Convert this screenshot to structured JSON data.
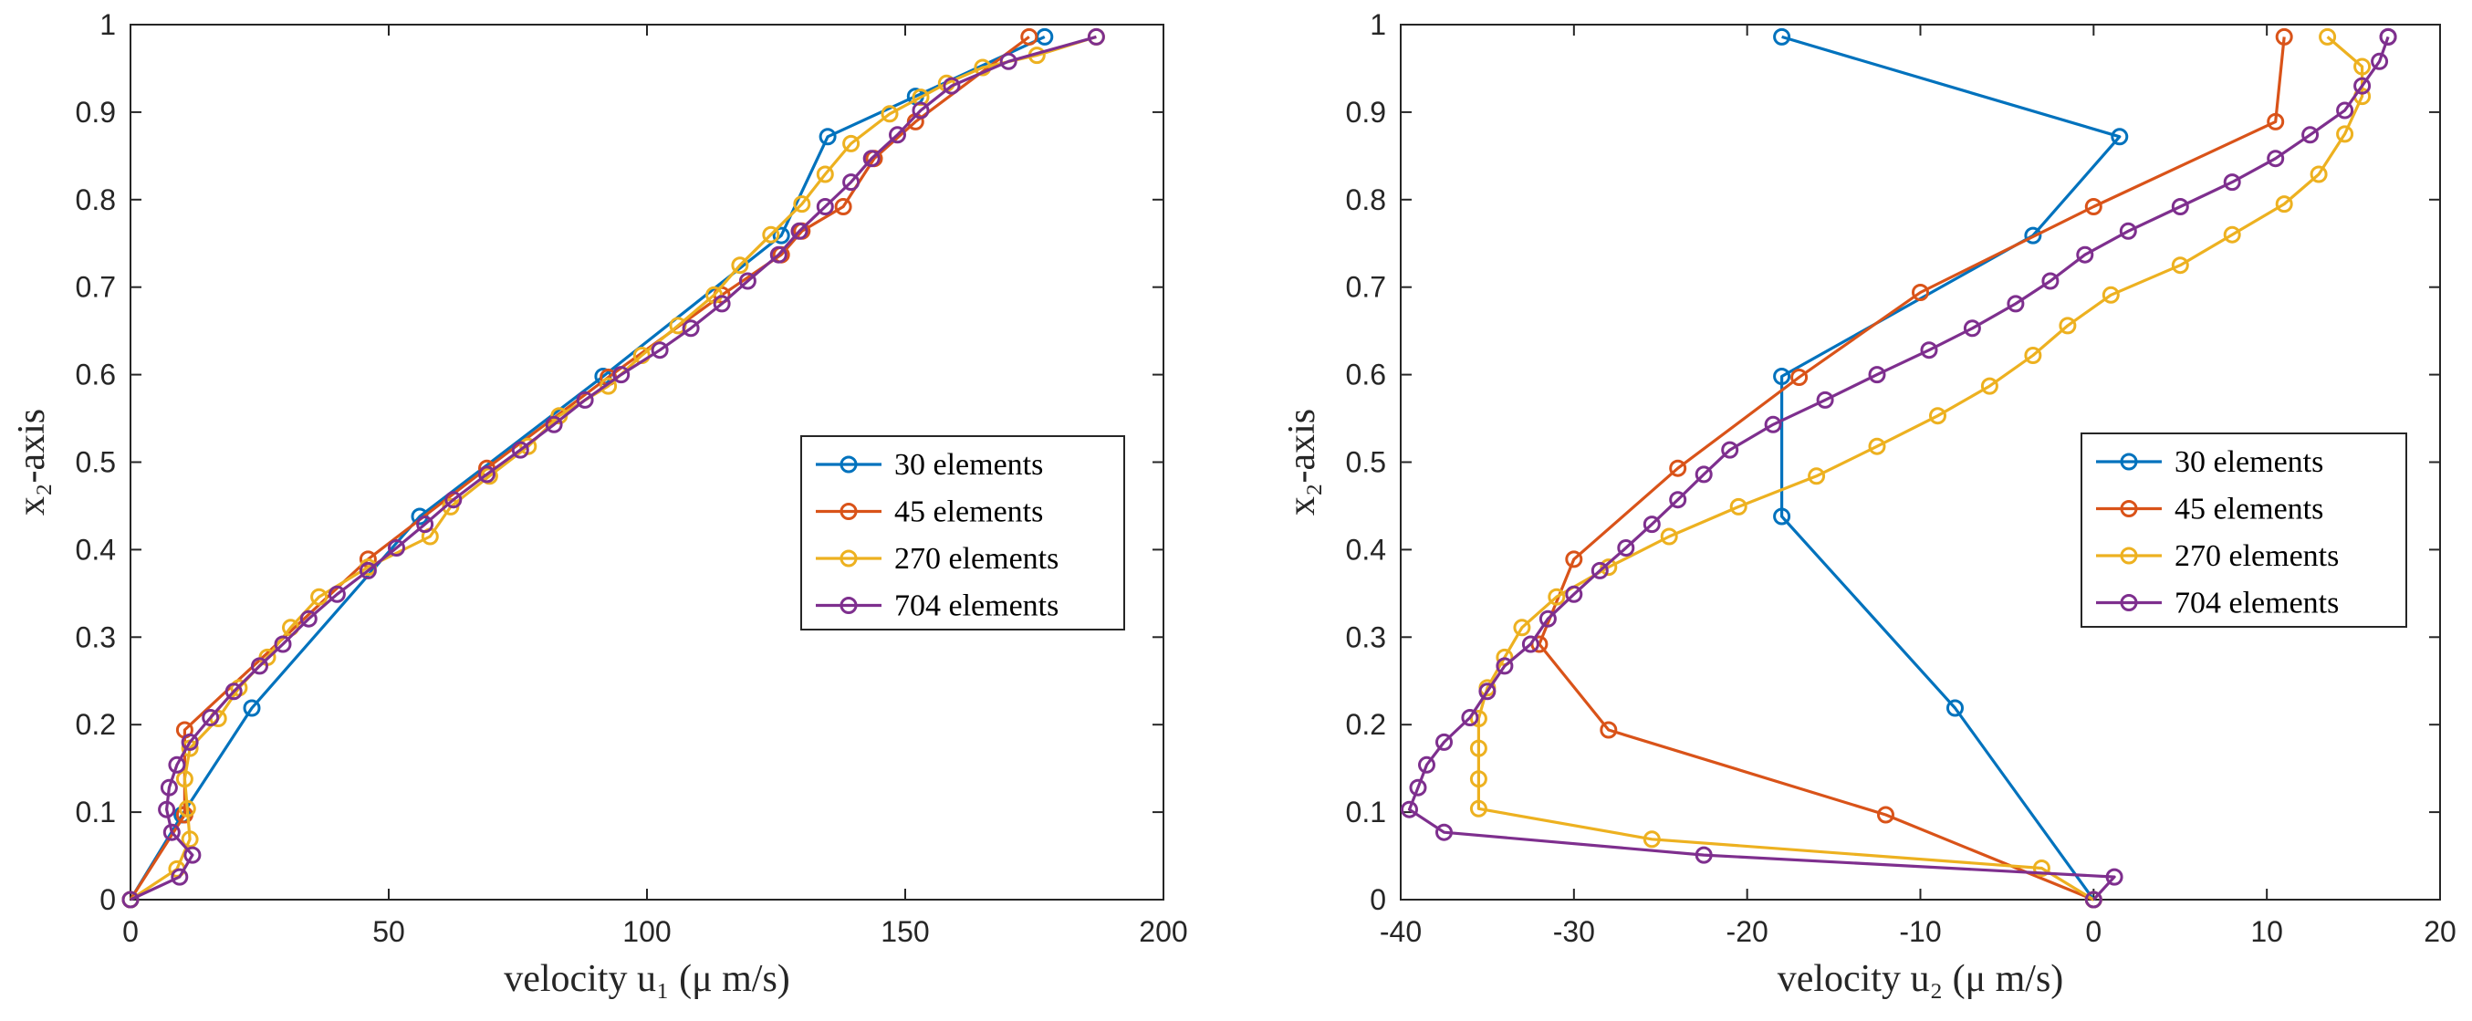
{
  "colors": {
    "30 elements": "#0072BD",
    "45 elements": "#D95319",
    "270 elements": "#EDB120",
    "704 elements": "#7E2F8E",
    "axis": "#262626"
  },
  "chart_data": [
    {
      "type": "line",
      "xlabel": "velocity u₁ (μ m/s)",
      "ylabel": "x₂-axis",
      "xlim": [
        0,
        200
      ],
      "ylim": [
        0,
        1
      ],
      "xticks": [
        "0",
        "50",
        "100",
        "150",
        "200"
      ],
      "yticks": [
        "0",
        "0.1",
        "0.2",
        "0.3",
        "0.4",
        "0.5",
        "0.6",
        "0.7",
        "0.8",
        "0.9",
        "1"
      ],
      "legend": "right-middle",
      "series": [
        {
          "name": "30 elements",
          "x": [
            0,
            10,
            23.5,
            56,
            91.5,
            126,
            135,
            152,
            177
          ],
          "y": [
            0,
            0.097,
            0.219,
            0.438,
            0.598,
            0.759,
            0.872,
            0.918,
            0.986
          ]
        },
        {
          "name": "45 elements",
          "x": [
            0,
            10.5,
            10.5,
            46,
            69,
            92.5,
            114.5,
            126,
            130,
            138,
            144,
            152,
            174
          ],
          "y": [
            0,
            0.097,
            0.194,
            0.389,
            0.493,
            0.597,
            0.691,
            0.737,
            0.764,
            0.792,
            0.847,
            0.889,
            0.986
          ]
        },
        {
          "name": "270 elements",
          "x": [
            0,
            9,
            11.5,
            11,
            10.5,
            11.5,
            17,
            21,
            26.5,
            31,
            36.5,
            46,
            58,
            62,
            69.5,
            77,
            83,
            92.5,
            99,
            106,
            113,
            118,
            124,
            130,
            134.5,
            139.5,
            147,
            153,
            158,
            165,
            175.5,
            187
          ],
          "y": [
            0,
            0.035,
            0.069,
            0.104,
            0.138,
            0.173,
            0.207,
            0.242,
            0.277,
            0.311,
            0.346,
            0.38,
            0.415,
            0.449,
            0.484,
            0.518,
            0.553,
            0.587,
            0.622,
            0.656,
            0.691,
            0.725,
            0.76,
            0.795,
            0.829,
            0.864,
            0.898,
            0.917,
            0.933,
            0.951,
            0.965,
            0.986
          ]
        },
        {
          "name": "704 elements",
          "x": [
            0,
            9.5,
            12,
            8,
            7,
            7.5,
            9,
            11.5,
            15.5,
            20,
            25,
            29.5,
            34.5,
            40,
            46,
            51.5,
            57,
            62.5,
            69,
            75.5,
            82,
            88,
            95,
            102.5,
            108.5,
            114.5,
            119.5,
            125.5,
            129.5,
            134.5,
            139.5,
            143.5,
            148.5,
            153,
            159,
            170,
            187
          ],
          "y": [
            0,
            0.026,
            0.051,
            0.077,
            0.103,
            0.128,
            0.154,
            0.18,
            0.208,
            0.238,
            0.267,
            0.292,
            0.321,
            0.349,
            0.376,
            0.402,
            0.429,
            0.457,
            0.486,
            0.514,
            0.543,
            0.571,
            0.6,
            0.628,
            0.653,
            0.681,
            0.707,
            0.737,
            0.764,
            0.792,
            0.82,
            0.847,
            0.874,
            0.902,
            0.93,
            0.958,
            0.986
          ]
        }
      ]
    },
    {
      "type": "line",
      "xlabel": "velocity u₂ (μ m/s)",
      "ylabel": "x₂-axis",
      "xlim": [
        -40,
        20
      ],
      "ylim": [
        0,
        1
      ],
      "xticks": [
        "-40",
        "-30",
        "-20",
        "-10",
        "0",
        "10",
        "20"
      ],
      "yticks": [
        "0",
        "0.1",
        "0.2",
        "0.3",
        "0.4",
        "0.5",
        "0.6",
        "0.7",
        "0.8",
        "0.9",
        "1"
      ],
      "legend": "right-middle",
      "series": [
        {
          "name": "30 elements",
          "x": [
            0,
            -8,
            -18,
            -18,
            -3.5,
            1.5,
            -18
          ],
          "y": [
            0,
            0.219,
            0.438,
            0.598,
            0.759,
            0.872,
            0.986
          ]
        },
        {
          "name": "45 elements",
          "x": [
            0,
            -12,
            -28,
            -32,
            -30,
            -24,
            -17,
            -10,
            0,
            10.5,
            11
          ],
          "y": [
            0,
            0.097,
            0.194,
            0.292,
            0.389,
            0.493,
            0.597,
            0.694,
            0.792,
            0.889,
            0.986
          ]
        },
        {
          "name": "270 elements",
          "x": [
            0,
            -3,
            -25.5,
            -35.5,
            -35.5,
            -35.5,
            -35.5,
            -35,
            -34,
            -33,
            -31,
            -28,
            -24.5,
            -20.5,
            -16,
            -12.5,
            -9,
            -6,
            -3.5,
            -1.5,
            1,
            5,
            8,
            11,
            13,
            14.5,
            15.5,
            15.5,
            13.5
          ],
          "y": [
            0,
            0.036,
            0.069,
            0.104,
            0.138,
            0.173,
            0.207,
            0.242,
            0.277,
            0.311,
            0.346,
            0.38,
            0.415,
            0.449,
            0.484,
            0.518,
            0.553,
            0.587,
            0.622,
            0.656,
            0.691,
            0.725,
            0.76,
            0.795,
            0.829,
            0.875,
            0.918,
            0.952,
            0.986
          ]
        },
        {
          "name": "704 elements",
          "x": [
            0,
            1.2,
            -22.5,
            -37.5,
            -39.5,
            -39,
            -38.5,
            -37.5,
            -36,
            -35,
            -34,
            -32.5,
            -31.5,
            -30,
            -28.5,
            -27,
            -25.5,
            -24,
            -22.5,
            -21,
            -18.5,
            -15.5,
            -12.5,
            -9.5,
            -7,
            -4.5,
            -2.5,
            -0.5,
            2,
            5,
            8,
            10.5,
            12.5,
            14.5,
            15.5,
            16.5,
            17,
            17
          ],
          "y": [
            0,
            0.026,
            0.051,
            0.077,
            0.103,
            0.128,
            0.154,
            0.18,
            0.208,
            0.238,
            0.267,
            0.292,
            0.321,
            0.349,
            0.376,
            0.402,
            0.429,
            0.457,
            0.486,
            0.514,
            0.543,
            0.571,
            0.6,
            0.628,
            0.653,
            0.681,
            0.707,
            0.737,
            0.764,
            0.792,
            0.82,
            0.847,
            0.874,
            0.902,
            0.93,
            0.958,
            0.986,
            0.986
          ]
        }
      ]
    }
  ]
}
